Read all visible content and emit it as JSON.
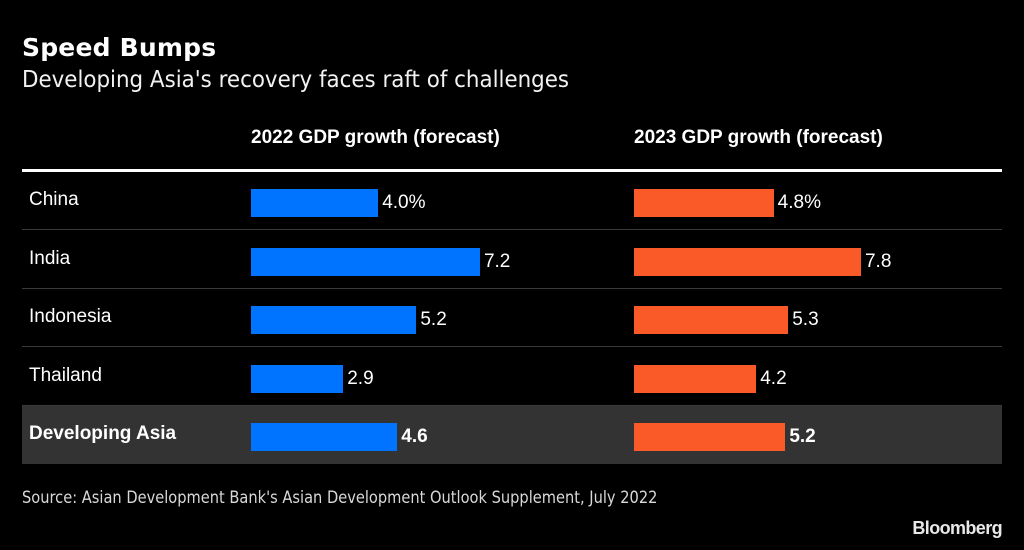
{
  "title": "Speed Bumps",
  "subtitle": "Developing Asia's recovery faces raft of challenges",
  "source": "Source: Asian Development Bank's Asian Development Outlook Supplement, July 2022",
  "brand": "Bloomberg",
  "colors": {
    "series_2022": "#0073ff",
    "series_2023": "#fa5a28",
    "highlight_row": "#333333",
    "background": "#000000"
  },
  "chart_data": {
    "type": "bar",
    "orientation": "horizontal",
    "title": "Speed Bumps",
    "subtitle": "Developing Asia's recovery faces raft of challenges",
    "categories": [
      "China",
      "India",
      "Indonesia",
      "Thailand",
      "Developing Asia"
    ],
    "highlighted_category": "Developing Asia",
    "series": [
      {
        "name": "2022 GDP growth (forecast)",
        "values": [
          4.0,
          7.2,
          5.2,
          2.9,
          4.6
        ],
        "labels": [
          "4.0%",
          "7.2",
          "5.2",
          "2.9",
          "4.6"
        ]
      },
      {
        "name": "2023 GDP growth (forecast)",
        "values": [
          4.8,
          7.8,
          5.3,
          4.2,
          5.2
        ],
        "labels": [
          "4.8%",
          "7.8",
          "5.3",
          "4.2",
          "5.2"
        ]
      }
    ],
    "xlabel": "",
    "ylabel": "",
    "grid": false,
    "legend": "column headers"
  }
}
